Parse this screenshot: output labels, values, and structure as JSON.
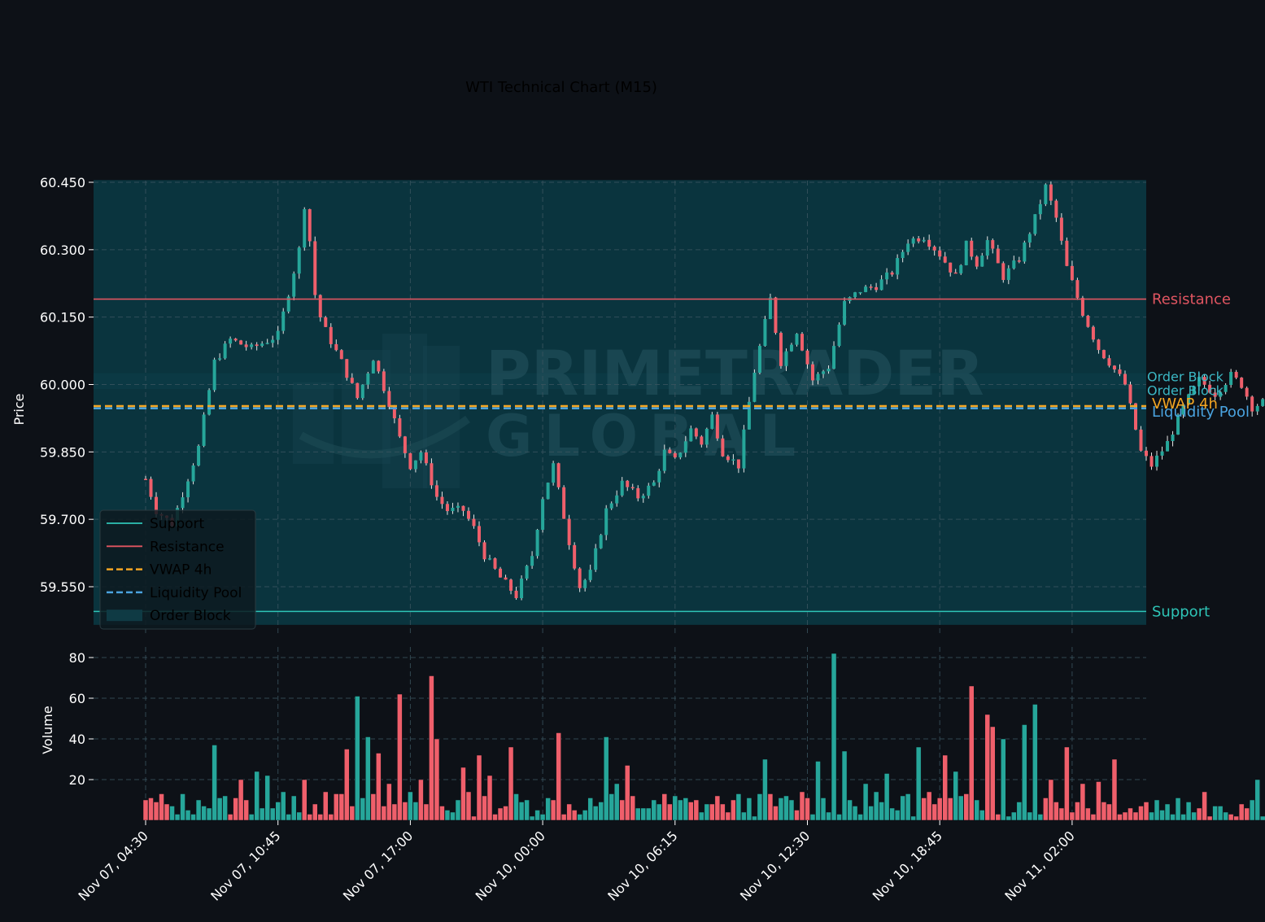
{
  "chart_data": [
    {
      "type": "candlestick",
      "title": "WTI Technical Chart (M15)",
      "ylabel": "Price",
      "ylim": [
        59.5,
        60.45
      ],
      "yticks": [
        "60.450",
        "60.300",
        "60.150",
        "60.000",
        "59.850",
        "59.700",
        "59.550"
      ],
      "xticks": [
        "Nov 07, 04:30",
        "Nov 07, 10:45",
        "Nov 07, 17:00",
        "Nov 10, 00:00",
        "Nov 10, 06:15",
        "Nov 10, 12:30",
        "Nov 10, 18:45",
        "Nov 11, 02:00"
      ],
      "bars": 216,
      "bars_per_tick": 25,
      "key_points": [
        [
          0,
          59.79
        ],
        [
          2,
          59.72
        ],
        [
          5,
          59.69
        ],
        [
          10,
          59.86
        ],
        [
          13,
          60.05
        ],
        [
          16,
          60.1
        ],
        [
          20,
          60.08
        ],
        [
          25,
          60.11
        ],
        [
          29,
          60.3
        ],
        [
          30,
          60.4
        ],
        [
          31,
          60.32
        ],
        [
          32,
          60.2
        ],
        [
          33,
          60.15
        ],
        [
          34,
          60.12
        ],
        [
          37,
          60.05
        ],
        [
          40,
          59.97
        ],
        [
          43,
          60.06
        ],
        [
          46,
          59.96
        ],
        [
          48,
          59.88
        ],
        [
          50,
          59.82
        ],
        [
          52,
          59.85
        ],
        [
          55,
          59.75
        ],
        [
          57,
          59.72
        ],
        [
          60,
          59.72
        ],
        [
          62,
          59.68
        ],
        [
          64,
          59.62
        ],
        [
          67,
          59.57
        ],
        [
          70,
          59.53
        ],
        [
          73,
          59.62
        ],
        [
          75,
          59.75
        ],
        [
          77,
          59.82
        ],
        [
          80,
          59.65
        ],
        [
          82,
          59.55
        ],
        [
          84,
          59.58
        ],
        [
          87,
          59.72
        ],
        [
          90,
          59.78
        ],
        [
          93,
          59.75
        ],
        [
          96,
          59.78
        ],
        [
          98,
          59.85
        ],
        [
          100,
          59.83
        ],
        [
          103,
          59.9
        ],
        [
          105,
          59.87
        ],
        [
          107,
          59.93
        ],
        [
          109,
          59.85
        ],
        [
          112,
          59.82
        ],
        [
          115,
          60.03
        ],
        [
          118,
          60.19
        ],
        [
          120,
          60.05
        ],
        [
          123,
          60.12
        ],
        [
          126,
          60.01
        ],
        [
          129,
          60.04
        ],
        [
          132,
          60.18
        ],
        [
          135,
          60.21
        ],
        [
          138,
          60.22
        ],
        [
          141,
          60.25
        ],
        [
          144,
          60.32
        ],
        [
          147,
          60.33
        ],
        [
          150,
          60.29
        ],
        [
          153,
          60.24
        ],
        [
          155,
          60.31
        ],
        [
          157,
          60.27
        ],
        [
          159,
          60.32
        ],
        [
          162,
          60.24
        ],
        [
          165,
          60.28
        ],
        [
          168,
          60.37
        ],
        [
          170,
          60.44
        ],
        [
          172,
          60.37
        ],
        [
          174,
          60.26
        ],
        [
          177,
          60.16
        ],
        [
          180,
          60.08
        ],
        [
          182,
          60.05
        ],
        [
          185,
          60.0
        ],
        [
          188,
          59.85
        ],
        [
          190,
          59.82
        ],
        [
          193,
          59.87
        ],
        [
          196,
          59.95
        ],
        [
          199,
          60.01
        ],
        [
          202,
          59.98
        ],
        [
          205,
          60.02
        ],
        [
          207,
          60.0
        ],
        [
          209,
          59.95
        ],
        [
          211,
          59.96
        ]
      ],
      "overlays": {
        "resistance": 60.19,
        "support": 59.495,
        "vwap_4h": 59.952,
        "liquidity_pool": 59.947,
        "order_block_top": 60.455,
        "order_block_bottom": 59.505,
        "order_block_2_top": 60.025,
        "order_block_2_bottom": 59.99
      },
      "level_labels": {
        "resistance": "Resistance",
        "support": "Support",
        "vwap_4h": "VWAP 4h",
        "liquidity_pool": "Liquidity Pool",
        "order_block_1": "Order Block",
        "order_block_2": "Order Block"
      },
      "legend": {
        "placement": "lower-left",
        "entries": [
          {
            "label": "Support",
            "style": "solid",
            "color": "#2ec4b6"
          },
          {
            "label": "Resistance",
            "style": "solid",
            "color": "#e05561"
          },
          {
            "label": "VWAP 4h",
            "style": "dashed",
            "color": "#f5a623"
          },
          {
            "label": "Liquidity Pool",
            "style": "dashed",
            "color": "#4aa3df"
          },
          {
            "label": "Order Block",
            "style": "patch",
            "color": "#0f3a44"
          }
        ]
      },
      "colors": {
        "up": "#26a69a",
        "down": "#ef5f6b",
        "background": "#0d1117",
        "grid": "#3b5560",
        "order_block_fill": "#0a3742",
        "resistance": "#e05561",
        "support": "#2ec4b6",
        "vwap": "#f5a623",
        "liquidity": "#4aa3df",
        "order_block_label": "#3bb7c4"
      }
    },
    {
      "type": "bar",
      "ylabel": "Volume",
      "ylim": [
        0,
        85
      ],
      "yticks": [
        "80",
        "60",
        "40",
        "20"
      ],
      "spikes": [
        [
          0,
          10
        ],
        [
          5,
          7
        ],
        [
          10,
          10
        ],
        [
          13,
          37
        ],
        [
          18,
          20
        ],
        [
          21,
          24
        ],
        [
          23,
          22
        ],
        [
          28,
          12
        ],
        [
          30,
          20
        ],
        [
          34,
          14
        ],
        [
          38,
          35
        ],
        [
          40,
          61
        ],
        [
          42,
          41
        ],
        [
          44,
          33
        ],
        [
          46,
          18
        ],
        [
          48,
          62
        ],
        [
          50,
          14
        ],
        [
          52,
          20
        ],
        [
          54,
          71
        ],
        [
          55,
          40
        ],
        [
          60,
          26
        ],
        [
          63,
          32
        ],
        [
          65,
          22
        ],
        [
          69,
          36
        ],
        [
          78,
          43
        ],
        [
          83,
          5
        ],
        [
          87,
          41
        ],
        [
          89,
          18
        ],
        [
          91,
          27
        ],
        [
          96,
          10
        ],
        [
          103,
          9
        ],
        [
          109,
          8
        ],
        [
          117,
          30
        ],
        [
          124,
          14
        ],
        [
          127,
          29
        ],
        [
          130,
          82
        ],
        [
          132,
          34
        ],
        [
          136,
          18
        ],
        [
          140,
          23
        ],
        [
          143,
          12
        ],
        [
          146,
          36
        ],
        [
          148,
          14
        ],
        [
          151,
          32
        ],
        [
          153,
          24
        ],
        [
          156,
          66
        ],
        [
          159,
          52
        ],
        [
          160,
          46
        ],
        [
          162,
          40
        ],
        [
          166,
          47
        ],
        [
          168,
          57
        ],
        [
          171,
          20
        ],
        [
          174,
          36
        ],
        [
          177,
          18
        ],
        [
          180,
          19
        ],
        [
          183,
          30
        ],
        [
          187,
          4
        ],
        [
          196,
          3
        ],
        [
          200,
          14
        ],
        [
          206,
          2
        ],
        [
          210,
          20
        ],
        [
          212,
          5
        ],
        [
          215,
          2
        ]
      ]
    }
  ],
  "watermark": {
    "line1": "PRIMETRADER",
    "line2": "GLOBAL"
  }
}
